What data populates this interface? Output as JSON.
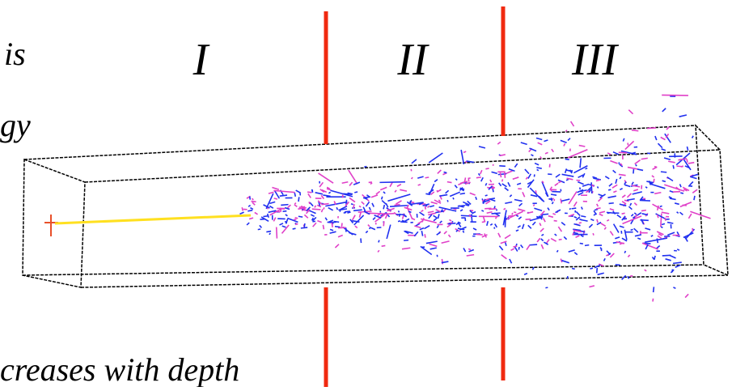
{
  "labels": {
    "top_left": "is",
    "mid_left": "gy",
    "bottom": "creases with depth"
  },
  "zones": [
    "I",
    "II",
    "III"
  ]
}
